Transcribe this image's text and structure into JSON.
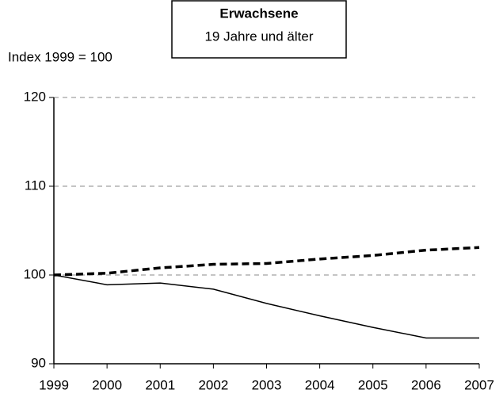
{
  "chart_data": {
    "type": "line",
    "title": "Erwachsene",
    "subtitle": "19 Jahre und älter",
    "ylabel": "Index 1999 = 100",
    "categories": [
      "1999",
      "2000",
      "2001",
      "2002",
      "2003",
      "2004",
      "2005",
      "2006",
      "2007"
    ],
    "series": [
      {
        "color": "#000000",
        "style": "solid",
        "values": [
          100,
          98.9,
          99.1,
          98.4,
          96.8,
          95.4,
          94.1,
          92.9,
          92.9
        ]
      },
      {
        "color": "#000000",
        "style": "dashed",
        "values": [
          100,
          100.2,
          100.8,
          101.2,
          101.3,
          101.8,
          102.2,
          102.8,
          103.1
        ]
      }
    ],
    "ylim": [
      90,
      120
    ],
    "yticks": [
      90,
      100,
      110,
      120
    ],
    "grid": true
  }
}
